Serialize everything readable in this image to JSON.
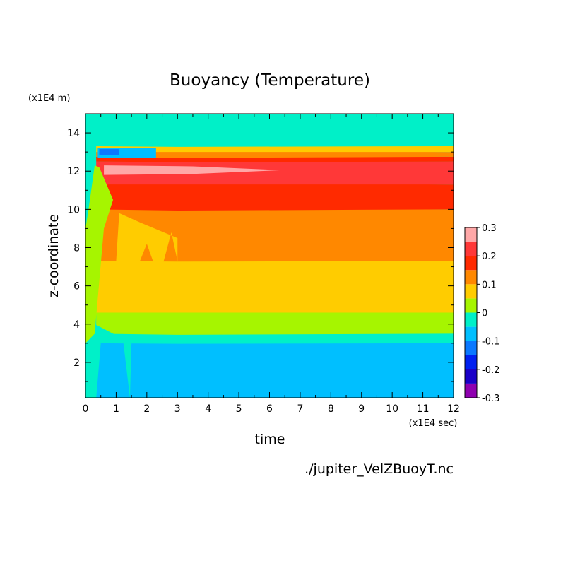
{
  "chart_data": {
    "type": "heatmap",
    "title": "Buoyancy (Temperature)",
    "xlabel": "time",
    "ylabel": "z-coordinate",
    "x_unit": "(x1E4 sec)",
    "y_unit": "(x1E4 m)",
    "source": "./jupiter_VelZBuoyT.nc",
    "xlim": [
      0,
      12
    ],
    "ylim": [
      0.15,
      15
    ],
    "x_ticks": [
      "0",
      "1",
      "2",
      "3",
      "4",
      "5",
      "6",
      "7",
      "8",
      "9",
      "10",
      "11",
      "12"
    ],
    "y_ticks": [
      "2",
      "4",
      "6",
      "8",
      "10",
      "12",
      "14"
    ],
    "colorbar": {
      "levels": [
        -0.3,
        -0.25,
        -0.2,
        -0.15,
        -0.1,
        -0.05,
        0,
        0.05,
        0.1,
        0.15,
        0.2,
        0.25,
        0.3
      ],
      "tick_labels": [
        "-0.3",
        "-0.2",
        "-0.1",
        "0",
        "0.1",
        "0.2",
        "0.3"
      ],
      "colors": [
        "#8f00b0",
        "#1a00c8",
        "#0020f0",
        "#0a78ff",
        "#00bfff",
        "#00f0c8",
        "#a6f500",
        "#ffcc00",
        "#ff8800",
        "#ff2a00",
        "#ff3838",
        "#ffa8a8"
      ]
    },
    "steady_profile": [
      {
        "z_from": 0.15,
        "z_to": 3.0,
        "value_range": [
          -0.1,
          -0.05
        ]
      },
      {
        "z_from": 3.0,
        "z_to": 3.5,
        "value_range": [
          -0.05,
          0
        ]
      },
      {
        "z_from": 3.5,
        "z_to": 4.6,
        "value_range": [
          0,
          0.05
        ]
      },
      {
        "z_from": 4.6,
        "z_to": 7.3,
        "value_range": [
          0.05,
          0.1
        ]
      },
      {
        "z_from": 7.3,
        "z_to": 10.0,
        "value_range": [
          0.1,
          0.15
        ]
      },
      {
        "z_from": 10.0,
        "z_to": 11.3,
        "value_range": [
          0.15,
          0.2
        ]
      },
      {
        "z_from": 11.3,
        "z_to": 12.5,
        "value_range": [
          0.2,
          0.25
        ]
      },
      {
        "z_from": 12.5,
        "z_to": 12.75,
        "value_range": [
          0.15,
          0.2
        ]
      },
      {
        "z_from": 12.75,
        "z_to": 13.0,
        "value_range": [
          0.1,
          0.15
        ]
      },
      {
        "z_from": 13.0,
        "z_to": 13.3,
        "value_range": [
          0.05,
          0.1
        ]
      },
      {
        "z_from": 13.3,
        "z_to": 15.0,
        "value_range": [
          -0.05,
          0
        ]
      }
    ],
    "features": {
      "peak_region": {
        "t_range": [
          0.6,
          6.4
        ],
        "z_range": [
          11.8,
          12.3
        ],
        "value_range": [
          0.25,
          0.3
        ]
      },
      "negative_blob": {
        "t_range": [
          0.4,
          2.3
        ],
        "z_range": [
          12.7,
          13.2
        ],
        "value_range": [
          -0.15,
          -0.1
        ]
      },
      "spin_up_end_time": 3.0
    }
  }
}
